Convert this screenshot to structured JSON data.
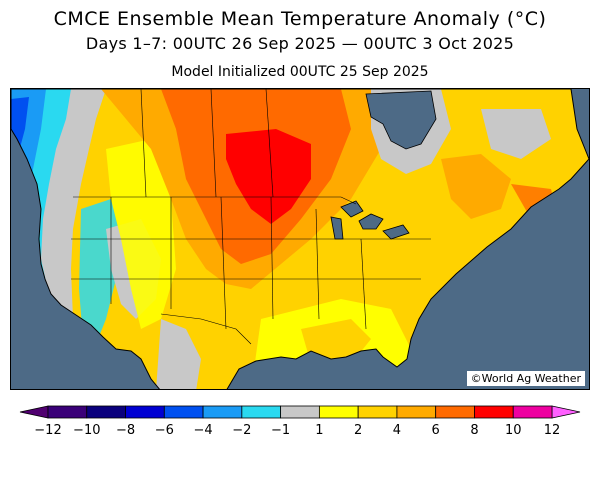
{
  "title": "CMCE Ensemble Mean Temperature Anomaly (°C)",
  "subtitle": "Days 1–7: 00UTC 26 Sep 2025 — 00UTC 3 Oct 2025",
  "init_line": "Model Initialized 00UTC 25 Sep 2025",
  "credit": "©World Ag Weather",
  "colors": {
    "ocean": "#4d6a86",
    "boundaries": "#000000",
    "lakes": "#4d6a86"
  },
  "legend": {
    "labels": [
      "-12",
      "-10",
      "-8",
      "-6",
      "-4",
      "-2",
      "-1",
      "1",
      "2",
      "4",
      "6",
      "8",
      "10",
      "12"
    ],
    "bins": [
      {
        "color": "#3a0078"
      },
      {
        "color": "#0a007d"
      },
      {
        "color": "#0000d2"
      },
      {
        "color": "#0050f0"
      },
      {
        "color": "#1a9bf5"
      },
      {
        "color": "#2ad9f0"
      },
      {
        "color": "#c8c8c8"
      },
      {
        "color": "#ffff00"
      },
      {
        "color": "#ffd200"
      },
      {
        "color": "#ffaa00"
      },
      {
        "color": "#ff6a00"
      },
      {
        "color": "#ff0000"
      },
      {
        "color": "#ee00a0"
      }
    ],
    "low_extend_color": "#500070",
    "high_extend_color": "#ff60ff"
  }
}
